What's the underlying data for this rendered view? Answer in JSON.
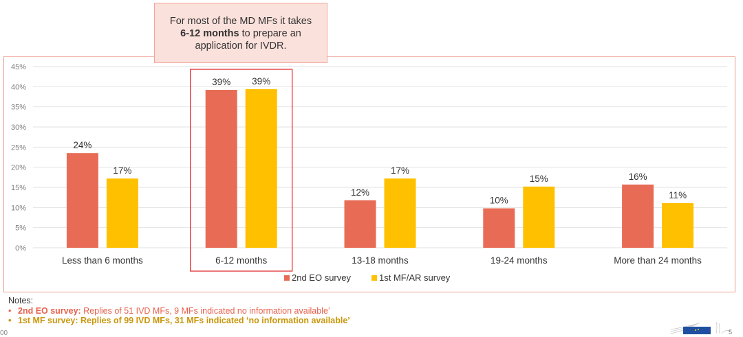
{
  "callout": {
    "line1": "For most of the MD MFs it takes",
    "bold": "6-12 months",
    "line2_rest": " to prepare an",
    "line3": "application for IVDR."
  },
  "chart_data": {
    "type": "bar",
    "title": "",
    "xlabel": "",
    "ylabel": "",
    "ylim": [
      0,
      45
    ],
    "yticks": [
      0,
      5,
      10,
      15,
      20,
      25,
      30,
      35,
      40,
      45
    ],
    "ytick_labels": [
      "0%",
      "5%",
      "10%",
      "15%",
      "20%",
      "25%",
      "30%",
      "35%",
      "40%",
      "45%"
    ],
    "grid": true,
    "categories": [
      "Less than 6 months",
      "6-12 months",
      "13-18 months",
      "19-24 months",
      "More than 24 months"
    ],
    "series": [
      {
        "name": "2nd EO survey",
        "color": "#e86c55",
        "values": [
          23.5,
          39.2,
          11.8,
          9.8,
          15.7
        ],
        "labels": [
          "24%",
          "39%",
          "12%",
          "10%",
          "16%"
        ]
      },
      {
        "name": "1st MF/AR survey",
        "color": "#ffc000",
        "values": [
          17.2,
          39.4,
          17.2,
          15.2,
          11.1
        ],
        "labels": [
          "17%",
          "39%",
          "17%",
          "15%",
          "11%"
        ]
      }
    ],
    "highlighted_category": "6-12 months",
    "legend": "bottom-center"
  },
  "notes": {
    "title": "Notes",
    "items": [
      {
        "bold": "2nd EO survey:",
        "text": " Replies of 51 IVD MFs, 9 MFs indicated no information available’"
      },
      {
        "bold": "1st MF survey:",
        "text": " Replies of 99 IVD MFs, 31 MFs indicated ‘no information available’"
      }
    ]
  },
  "footer": {
    "page_fragment": "00",
    "page_number": "5"
  }
}
